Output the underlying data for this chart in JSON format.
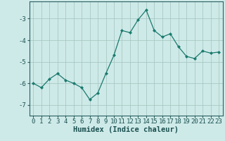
{
  "xlabel": "Humidex (Indice chaleur)",
  "x": [
    0,
    1,
    2,
    3,
    4,
    5,
    6,
    7,
    8,
    9,
    10,
    11,
    12,
    13,
    14,
    15,
    16,
    17,
    18,
    19,
    20,
    21,
    22,
    23
  ],
  "y": [
    -6.0,
    -6.2,
    -5.8,
    -5.55,
    -5.85,
    -6.0,
    -6.2,
    -6.75,
    -6.45,
    -5.55,
    -4.7,
    -3.55,
    -3.65,
    -3.05,
    -2.6,
    -3.55,
    -3.85,
    -3.7,
    -4.3,
    -4.75,
    -4.85,
    -4.5,
    -4.6,
    -4.55
  ],
  "line_color": "#1a7a6e",
  "marker": "D",
  "marker_size": 2.0,
  "bg_color": "#ceeae8",
  "grid_color": "#a8c8c4",
  "tick_color": "#2a6060",
  "label_color": "#1a5050",
  "ylim": [
    -7.5,
    -2.2
  ],
  "yticks": [
    -7,
    -6,
    -5,
    -4,
    -3
  ],
  "xlim": [
    -0.5,
    23.5
  ],
  "fontsize_tick": 6.5,
  "fontsize_label": 7.5
}
